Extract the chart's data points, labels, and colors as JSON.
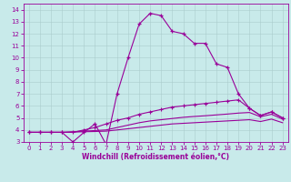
{
  "xlabel": "Windchill (Refroidissement éolien,°C)",
  "xlim": [
    -0.5,
    23.5
  ],
  "ylim": [
    3,
    14.5
  ],
  "xticks": [
    0,
    1,
    2,
    3,
    4,
    5,
    6,
    7,
    8,
    9,
    10,
    11,
    12,
    13,
    14,
    15,
    16,
    17,
    18,
    19,
    20,
    21,
    22,
    23
  ],
  "yticks": [
    3,
    4,
    5,
    6,
    7,
    8,
    9,
    10,
    11,
    12,
    13,
    14
  ],
  "bg_color": "#c8eaea",
  "line_color": "#990099",
  "grid_color": "#aacccc",
  "series": [
    [
      3.8,
      3.8,
      3.8,
      3.8,
      3.0,
      3.8,
      4.5,
      2.8,
      7.0,
      10.0,
      12.8,
      13.7,
      13.5,
      12.2,
      12.0,
      11.2,
      11.2,
      9.5,
      9.2,
      7.0,
      5.8,
      5.2,
      5.5,
      5.0
    ],
    [
      3.8,
      3.8,
      3.8,
      3.8,
      3.8,
      4.0,
      4.2,
      4.5,
      4.8,
      5.0,
      5.3,
      5.5,
      5.7,
      5.9,
      6.0,
      6.1,
      6.2,
      6.3,
      6.4,
      6.5,
      5.8,
      5.2,
      5.5,
      5.0
    ],
    [
      3.8,
      3.8,
      3.8,
      3.8,
      3.85,
      3.9,
      3.95,
      4.0,
      4.2,
      4.4,
      4.6,
      4.75,
      4.85,
      4.95,
      5.05,
      5.12,
      5.18,
      5.25,
      5.32,
      5.4,
      5.45,
      5.1,
      5.3,
      4.9
    ],
    [
      3.8,
      3.8,
      3.8,
      3.8,
      3.82,
      3.85,
      3.87,
      3.9,
      4.0,
      4.1,
      4.2,
      4.3,
      4.4,
      4.5,
      4.55,
      4.6,
      4.65,
      4.7,
      4.75,
      4.8,
      4.85,
      4.7,
      4.9,
      4.6
    ]
  ],
  "marker_series": [
    0,
    1
  ],
  "xlabel_fontsize": 5.5,
  "tick_fontsize": 5.0
}
